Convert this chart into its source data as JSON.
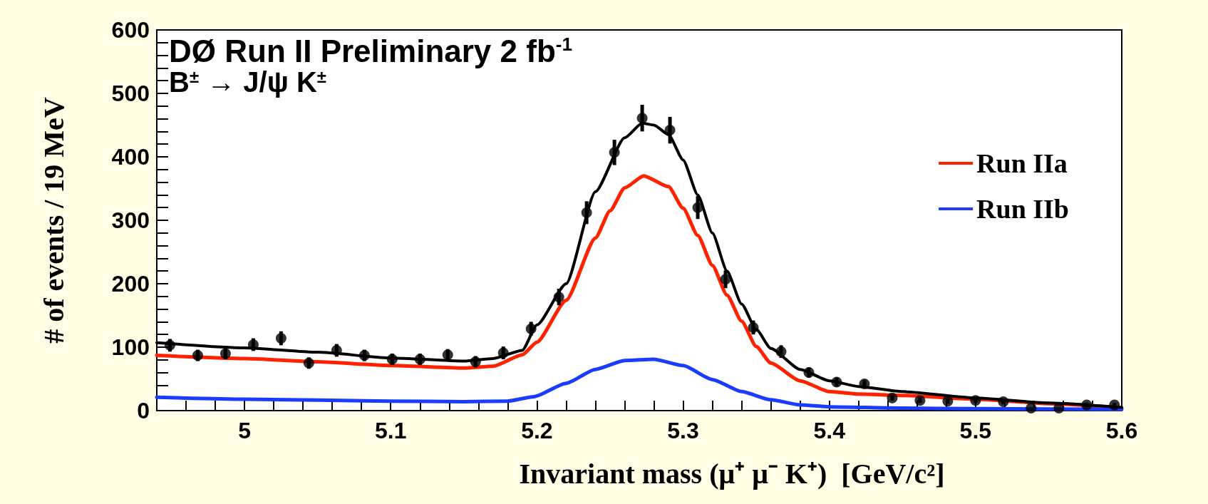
{
  "chart_data": {
    "type": "line",
    "title": "DØ Run II Preliminary 2 fb$^{-1}$",
    "subtitle": "B$^{±}$ → J/ψ K$^{±}$",
    "xlabel": "Invariant mass (μ⁺ μ⁻ K⁺)  [GeV/c²]",
    "ylabel": "# of events / 19 MeV",
    "xlim": [
      4.94,
      5.6
    ],
    "xticks": [
      {
        "value": 4.96,
        "label": null
      },
      {
        "value": 4.98,
        "label": null
      },
      5,
      {
        "value": 5.02,
        "label": null
      },
      {
        "value": 5.04,
        "label": null
      },
      {
        "value": 5.06,
        "label": null
      },
      {
        "value": 5.08,
        "label": null
      },
      5.1,
      {
        "value": 5.12,
        "label": null
      },
      {
        "value": 5.14,
        "label": null
      },
      {
        "value": 5.16,
        "label": null
      },
      {
        "value": 5.18,
        "label": null
      },
      5.2,
      {
        "value": 5.22,
        "label": null
      },
      {
        "value": 5.24,
        "label": null
      },
      {
        "value": 5.26,
        "label": null
      },
      {
        "value": 5.28,
        "label": null
      },
      5.3,
      {
        "value": 5.32,
        "label": null
      },
      {
        "value": 5.34,
        "label": null
      },
      {
        "value": 5.36,
        "label": null
      },
      {
        "value": 5.38,
        "label": null
      },
      5.4,
      {
        "value": 5.42,
        "label": null
      },
      {
        "value": 5.44,
        "label": null
      },
      {
        "value": 5.46,
        "label": null
      },
      {
        "value": 5.48,
        "label": null
      },
      5.5,
      {
        "value": 5.52,
        "label": null
      },
      {
        "value": 5.54,
        "label": null
      },
      {
        "value": 5.56,
        "label": null
      },
      {
        "value": 5.58,
        "label": null
      },
      5.6
    ],
    "ylim": [
      0,
      600
    ],
    "yticks": [
      0,
      {
        "value": 20,
        "label": null
      },
      {
        "value": 40,
        "label": null
      },
      {
        "value": 60,
        "label": null
      },
      {
        "value": 80,
        "label": null
      },
      100,
      {
        "value": 120,
        "label": null
      },
      {
        "value": 140,
        "label": null
      },
      {
        "value": 160,
        "label": null
      },
      {
        "value": 180,
        "label": null
      },
      200,
      {
        "value": 220,
        "label": null
      },
      {
        "value": 240,
        "label": null
      },
      {
        "value": 260,
        "label": null
      },
      {
        "value": 280,
        "label": null
      },
      300,
      {
        "value": 320,
        "label": null
      },
      {
        "value": 340,
        "label": null
      },
      {
        "value": 360,
        "label": null
      },
      {
        "value": 380,
        "label": null
      },
      400,
      {
        "value": 420,
        "label": null
      },
      {
        "value": 440,
        "label": null
      },
      {
        "value": 460,
        "label": null
      },
      {
        "value": 480,
        "label": null
      },
      500,
      {
        "value": 520,
        "label": null
      },
      {
        "value": 540,
        "label": null
      },
      {
        "value": 560,
        "label": null
      },
      {
        "value": 580,
        "label": null
      },
      600
    ],
    "grid": false,
    "legend": "top right",
    "series": [
      {
        "type": "scatter",
        "color": "#000000",
        "marker": "circle",
        "x": [
          4.949,
          4.968,
          4.987,
          5.006,
          5.025,
          5.044,
          5.063,
          5.082,
          5.101,
          5.12,
          5.139,
          5.158,
          5.177,
          5.196,
          5.215,
          5.234,
          5.253,
          5.272,
          5.291,
          5.31,
          5.329,
          5.348,
          5.367,
          5.386,
          5.405,
          5.424,
          5.443,
          5.462,
          5.481,
          5.5,
          5.519,
          5.538,
          5.557,
          5.576,
          5.595
        ],
        "values": [
          103,
          87,
          90,
          104,
          114,
          75,
          95,
          87,
          81,
          81,
          88,
          77,
          91,
          129,
          179,
          312,
          407,
          461,
          442,
          320,
          207,
          131,
          93,
          60,
          45,
          42,
          20,
          16,
          15,
          16,
          14,
          4,
          4,
          9,
          9
        ],
        "errors": [
          10,
          9,
          9,
          10,
          11,
          9,
          10,
          9,
          9,
          9,
          9,
          9,
          10,
          11,
          13,
          18,
          20,
          21,
          21,
          18,
          14,
          11,
          10,
          8,
          7,
          6,
          4,
          4,
          4,
          4,
          4,
          null,
          null,
          3,
          3
        ]
      },
      {
        "color": "#000000",
        "line_style": "solid",
        "x": [
          4.94,
          5.0,
          5.05,
          5.1,
          5.15,
          5.17,
          5.19,
          5.2,
          5.22,
          5.24,
          5.26,
          5.272,
          5.28,
          5.29,
          5.3,
          5.31,
          5.32,
          5.33,
          5.34,
          5.35,
          5.36,
          5.38,
          5.4,
          5.42,
          5.45,
          5.5,
          5.55,
          5.6
        ],
        "values": [
          107,
          99,
          92,
          83,
          78,
          82,
          95,
          135,
          200,
          345,
          430,
          453,
          450,
          435,
          395,
          340,
          280,
          220,
          168,
          128,
          98,
          65,
          47,
          38,
          30,
          20,
          12,
          5
        ]
      },
      {
        "name": "Run IIa",
        "color": "#ff2200",
        "line_style": "solid",
        "x": [
          4.94,
          5.0,
          5.05,
          5.1,
          5.15,
          5.17,
          5.19,
          5.2,
          5.22,
          5.24,
          5.25,
          5.26,
          5.273,
          5.29,
          5.3,
          5.31,
          5.32,
          5.33,
          5.34,
          5.35,
          5.36,
          5.38,
          5.4,
          5.42,
          5.45,
          5.5,
          5.55,
          5.6
        ],
        "values": [
          87,
          82,
          77,
          71,
          67,
          70,
          88,
          108,
          174,
          272,
          315,
          351,
          370,
          353,
          319,
          276,
          229,
          182,
          141,
          101,
          75,
          47,
          30,
          26,
          24,
          18,
          11,
          4
        ]
      },
      {
        "name": "Run IIb",
        "color": "#1a3cff",
        "line_style": "solid",
        "x": [
          4.94,
          5.0,
          5.1,
          5.15,
          5.18,
          5.198,
          5.22,
          5.24,
          5.26,
          5.28,
          5.3,
          5.32,
          5.34,
          5.36,
          5.38,
          5.4,
          5.45,
          5.5,
          5.6
        ],
        "values": [
          21,
          18,
          15,
          14,
          15,
          22,
          43,
          65,
          79,
          81,
          71,
          49,
          30,
          17,
          9,
          6,
          4,
          3,
          2
        ]
      }
    ]
  }
}
